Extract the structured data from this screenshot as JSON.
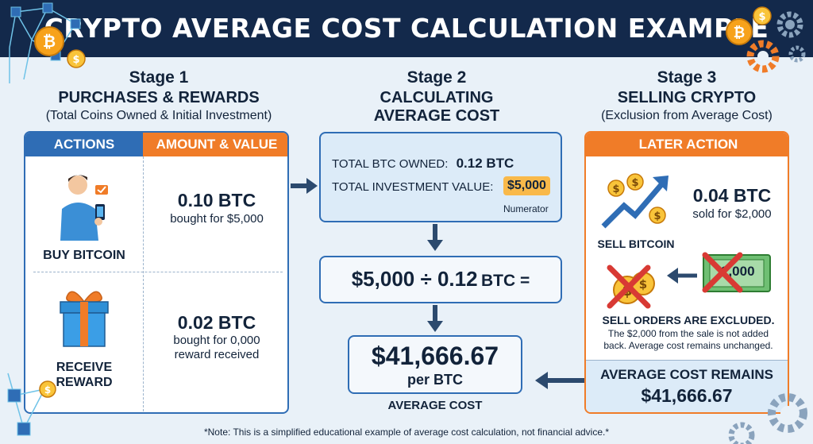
{
  "title": "CRYPTO AVERAGE COST CALCULATION EXAMPLE",
  "stage1": {
    "label": "Stage 1",
    "heading": "PURCHASES & REWARDS",
    "subheading": "(Total Coins Owned & Initial Investment)",
    "col_actions": "ACTIONS",
    "col_amount": "AMOUNT & VALUE",
    "row1": {
      "action": "BUY BITCOIN",
      "amount": "0.10 BTC",
      "detail": "bought for $5,000"
    },
    "row2": {
      "action_line1": "RECEIVE",
      "action_line2": "REWARD",
      "amount": "0.02 BTC",
      "detail_line1": "bought for 0,000",
      "detail_line2": "reward received"
    }
  },
  "stage2": {
    "label": "Stage 2",
    "heading_line1": "CALCULATING",
    "heading_line2": "AVERAGE COST",
    "owned_label": "TOTAL BTC OWNED:",
    "owned_value": "0.12 BTC",
    "investment_label": "TOTAL INVESTMENT VALUE:",
    "investment_value": "$5,000",
    "numerator": "Numerator",
    "formula_left": "$5,000 ÷ 0.12",
    "formula_unit": "BTC =",
    "result": "$41,666.67",
    "result_unit": "per BTC",
    "result_label": "AVERAGE COST"
  },
  "stage3": {
    "label": "Stage 3",
    "heading": "SELLING CRYPTO",
    "subheading": "(Exclusion from Average Cost)",
    "col_header": "LATER ACTION",
    "sell_amount": "0.04 BTC",
    "sell_detail": "sold for $2,000",
    "sell_label": "SELL BITCOIN",
    "banknote": "2,000",
    "excluded_title": "SELL ORDERS ARE EXCLUDED.",
    "excluded_line1": "The $2,000 from the sale is not added",
    "excluded_line2": "back. Average cost remains unchanged.",
    "remains_label": "AVERAGE COST REMAINS",
    "remains_value": "$41,666.67"
  },
  "note": "*Note: This is a simplified educational example of average cost calculation, not financial advice.*",
  "icons": [
    "bitcoin-icon",
    "coin-icon",
    "gear-icon",
    "blockchain-icon",
    "person-phone-icon",
    "gift-icon",
    "chart-up-icon",
    "banknote-icon",
    "cross-icon"
  ],
  "colors": {
    "navy": "#13294b",
    "blue": "#2f6db5",
    "orange": "#f07c28",
    "bg": "#e9f1f8",
    "highlight": "#f9b94a",
    "red": "#d83a34"
  }
}
